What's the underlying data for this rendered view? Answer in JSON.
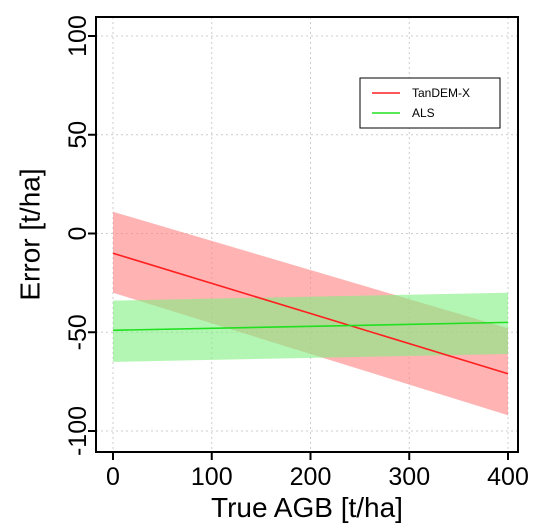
{
  "chart_data": {
    "type": "line",
    "xlabel": "True AGB [t/ha]",
    "ylabel": "Error [t/ha]",
    "xlim": [
      0,
      400
    ],
    "ylim": [
      -100,
      100
    ],
    "xticks": [
      0,
      100,
      200,
      300,
      400
    ],
    "yticks": [
      -100,
      -50,
      0,
      50,
      100
    ],
    "grid": true,
    "legend_position": "top-right",
    "series": [
      {
        "name": "TanDEM-X",
        "color": "#ff2020",
        "band_color": "#ff8080",
        "x": [
          0,
          400
        ],
        "y": [
          -10,
          -71
        ],
        "lower": [
          -30,
          -92
        ],
        "upper": [
          11,
          -48
        ]
      },
      {
        "name": "ALS",
        "color": "#20e020",
        "band_color": "#80f080",
        "x": [
          0,
          400
        ],
        "y": [
          -49,
          -45
        ],
        "lower": [
          -65,
          -61
        ],
        "upper": [
          -34,
          -30
        ]
      }
    ]
  }
}
